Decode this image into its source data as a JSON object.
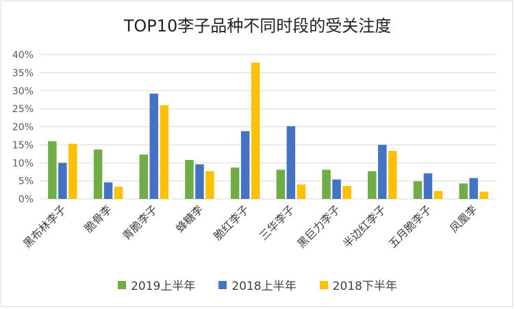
{
  "chart_data": {
    "type": "bar",
    "title": "TOP10李子品种不同时段的受关注度",
    "xlabel": "",
    "ylabel": "",
    "ylim": [
      0,
      40
    ],
    "yticks": [
      "0%",
      "5%",
      "10%",
      "15%",
      "20%",
      "25%",
      "30%",
      "35%",
      "40%"
    ],
    "grid": true,
    "legend_position": "bottom",
    "categories": [
      "黑布林李子",
      "脆骨李",
      "青脆李子",
      "蜂糖李",
      "脆红李子",
      "三华李子",
      "黑巨力李子",
      "半边红李子",
      "五月脆李子",
      "凤凰李"
    ],
    "series": [
      {
        "name": "2019上半年",
        "color": "#70ad47",
        "values": [
          16.0,
          13.7,
          12.3,
          10.8,
          8.7,
          8.1,
          8.1,
          7.7,
          4.9,
          4.3
        ]
      },
      {
        "name": "2018上半年",
        "color": "#4472c4",
        "values": [
          10.0,
          4.6,
          29.2,
          9.6,
          18.8,
          20.2,
          5.4,
          15.0,
          7.1,
          5.8
        ]
      },
      {
        "name": "2018下半年",
        "color": "#ffc000",
        "values": [
          15.3,
          3.4,
          26.0,
          7.7,
          37.8,
          4.0,
          3.6,
          13.3,
          2.2,
          2.0
        ]
      }
    ]
  }
}
